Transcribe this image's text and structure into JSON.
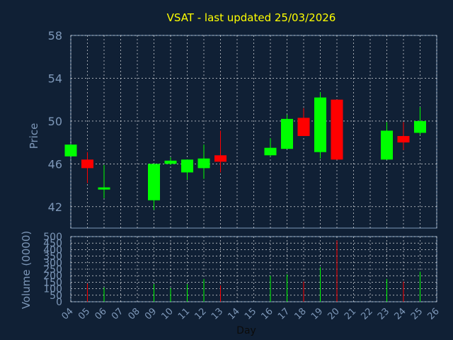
{
  "chart_data": {
    "type": "candlestick",
    "title": "VSAT - last updated 25/03/2026",
    "xlabel": "Day",
    "price_panel": {
      "ylabel": "Price",
      "ylim": [
        40,
        58
      ],
      "yticks": [
        "42",
        "46",
        "50",
        "54",
        "58"
      ],
      "grid": true
    },
    "volume_panel": {
      "ylabel": "Volume (0000)",
      "ylim": [
        0,
        500
      ],
      "yticks": [
        "0",
        "50",
        "100",
        "150",
        "200",
        "250",
        "300",
        "350",
        "400",
        "450",
        "500"
      ],
      "grid": true
    },
    "x_ticks": [
      "04",
      "05",
      "06",
      "07",
      "08",
      "09",
      "10",
      "11",
      "12",
      "13",
      "14",
      "15",
      "16",
      "17",
      "18",
      "19",
      "20",
      "21",
      "22",
      "23",
      "24",
      "25",
      "26"
    ],
    "candles": [
      {
        "day": "04",
        "open": 46.7,
        "close": 47.8,
        "high": 47.8,
        "low": 46.7,
        "volume": null
      },
      {
        "day": "05",
        "open": 46.4,
        "close": 45.6,
        "high": 47.1,
        "low": 44.2,
        "volume": 140
      },
      {
        "day": "06",
        "open": 43.6,
        "close": 43.8,
        "high": 45.9,
        "low": 42.8,
        "volume": 110
      },
      {
        "day": "09",
        "open": 42.6,
        "close": 46.0,
        "high": 46.0,
        "low": 41.7,
        "volume": 135
      },
      {
        "day": "10",
        "open": 46.0,
        "close": 46.3,
        "high": 46.6,
        "low": 45.9,
        "volume": 105
      },
      {
        "day": "11",
        "open": 45.2,
        "close": 46.4,
        "high": 46.4,
        "low": 44.5,
        "volume": 135
      },
      {
        "day": "12",
        "open": 45.6,
        "close": 46.5,
        "high": 47.8,
        "low": 44.6,
        "volume": 175
      },
      {
        "day": "13",
        "open": 46.8,
        "close": 46.2,
        "high": 49.1,
        "low": 45.2,
        "volume": 125
      },
      {
        "day": "16",
        "open": 46.8,
        "close": 47.5,
        "high": 48.4,
        "low": 46.7,
        "volume": 200
      },
      {
        "day": "17",
        "open": 47.4,
        "close": 50.2,
        "high": 50.6,
        "low": 47.4,
        "volume": 210
      },
      {
        "day": "18",
        "open": 50.3,
        "close": 48.6,
        "high": 51.2,
        "low": 48.6,
        "volume": 155
      },
      {
        "day": "19",
        "open": 47.1,
        "close": 52.2,
        "high": 52.7,
        "low": 46.5,
        "volume": 265
      },
      {
        "day": "20",
        "open": 52.0,
        "close": 46.4,
        "high": 52.0,
        "low": 46.4,
        "volume": 470
      },
      {
        "day": "23",
        "open": 46.4,
        "close": 49.1,
        "high": 49.9,
        "low": 46.4,
        "volume": 175
      },
      {
        "day": "24",
        "open": 48.6,
        "close": 48.0,
        "high": 49.9,
        "low": 47.3,
        "volume": 155
      },
      {
        "day": "25",
        "open": 48.9,
        "close": 50.0,
        "high": 51.3,
        "low": 48.7,
        "volume": 230
      }
    ],
    "colors": {
      "background": "#102035",
      "up": "#00ff00",
      "down": "#ff0000",
      "grid": "#ffffff",
      "axis_text": "#7d97b8",
      "title": "#ffff00",
      "frame": "#7d97b8"
    }
  }
}
